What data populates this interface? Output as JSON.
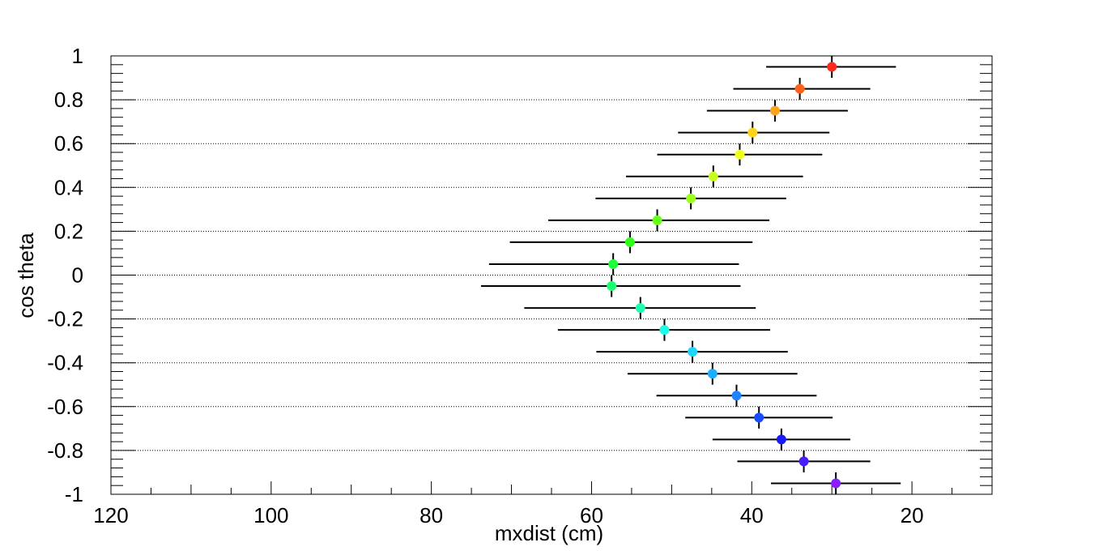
{
  "chart_data": {
    "type": "scatter",
    "title": "",
    "xlabel": "mxdist (cm)",
    "ylabel": "cos theta",
    "xlim": [
      120,
      10
    ],
    "ylim": [
      -1,
      1
    ],
    "x_reversed": true,
    "x_ticks": [
      120,
      100,
      80,
      60,
      40,
      20
    ],
    "x_tick_labels": [
      "120",
      "100",
      "80",
      "60",
      "40",
      "20"
    ],
    "y_ticks": [
      -1,
      -0.8,
      -0.6,
      -0.4,
      -0.2,
      0,
      0.2,
      0.4,
      0.6,
      0.8,
      1
    ],
    "y_tick_labels": [
      "-1",
      "-0.8",
      "-0.6",
      "-0.4",
      "-0.2",
      "0",
      "0.2",
      "0.4",
      "0.6",
      "0.8",
      "1"
    ],
    "grid_y": true,
    "points": [
      {
        "x": 29.5,
        "y": -0.95,
        "x_lo": 37.6,
        "x_hi": 21.4,
        "y_err": 0.05,
        "color": "#8a1cff"
      },
      {
        "x": 33.5,
        "y": -0.85,
        "x_lo": 41.8,
        "x_hi": 25.2,
        "y_err": 0.05,
        "color": "#4a1cff"
      },
      {
        "x": 36.3,
        "y": -0.75,
        "x_lo": 44.9,
        "x_hi": 27.7,
        "y_err": 0.05,
        "color": "#1a1aff"
      },
      {
        "x": 39.1,
        "y": -0.65,
        "x_lo": 48.3,
        "x_hi": 29.9,
        "y_err": 0.05,
        "color": "#1a4cff"
      },
      {
        "x": 41.9,
        "y": -0.55,
        "x_lo": 51.9,
        "x_hi": 31.9,
        "y_err": 0.05,
        "color": "#1c84ff"
      },
      {
        "x": 44.9,
        "y": -0.45,
        "x_lo": 55.5,
        "x_hi": 34.3,
        "y_err": 0.05,
        "color": "#1caeff"
      },
      {
        "x": 47.4,
        "y": -0.35,
        "x_lo": 59.4,
        "x_hi": 35.5,
        "y_err": 0.05,
        "color": "#1cd6ff"
      },
      {
        "x": 50.9,
        "y": -0.25,
        "x_lo": 64.2,
        "x_hi": 37.7,
        "y_err": 0.05,
        "color": "#1cfce8"
      },
      {
        "x": 53.9,
        "y": -0.15,
        "x_lo": 68.4,
        "x_hi": 39.5,
        "y_err": 0.05,
        "color": "#1cffae"
      },
      {
        "x": 57.5,
        "y": -0.05,
        "x_lo": 73.8,
        "x_hi": 41.4,
        "y_err": 0.05,
        "color": "#1cff6e"
      },
      {
        "x": 57.3,
        "y": 0.05,
        "x_lo": 72.8,
        "x_hi": 41.6,
        "y_err": 0.05,
        "color": "#1cff3a"
      },
      {
        "x": 55.2,
        "y": 0.15,
        "x_lo": 70.2,
        "x_hi": 39.9,
        "y_err": 0.05,
        "color": "#33ff1c"
      },
      {
        "x": 51.8,
        "y": 0.25,
        "x_lo": 65.4,
        "x_hi": 37.8,
        "y_err": 0.05,
        "color": "#66ff1c"
      },
      {
        "x": 47.6,
        "y": 0.35,
        "x_lo": 59.5,
        "x_hi": 35.7,
        "y_err": 0.05,
        "color": "#9aff1c"
      },
      {
        "x": 44.8,
        "y": 0.45,
        "x_lo": 55.7,
        "x_hi": 33.6,
        "y_err": 0.05,
        "color": "#c6ff1c"
      },
      {
        "x": 41.5,
        "y": 0.55,
        "x_lo": 51.8,
        "x_hi": 31.2,
        "y_err": 0.05,
        "color": "#f0ff1c"
      },
      {
        "x": 39.9,
        "y": 0.65,
        "x_lo": 49.2,
        "x_hi": 30.3,
        "y_err": 0.05,
        "color": "#ffd21c"
      },
      {
        "x": 37.1,
        "y": 0.75,
        "x_lo": 45.6,
        "x_hi": 28.0,
        "y_err": 0.05,
        "color": "#ffa21c"
      },
      {
        "x": 34.0,
        "y": 0.85,
        "x_lo": 42.3,
        "x_hi": 25.2,
        "y_err": 0.05,
        "color": "#ff621c"
      },
      {
        "x": 30.0,
        "y": 0.95,
        "x_lo": 38.2,
        "x_hi": 22.0,
        "y_err": 0.05,
        "color": "#ff2a1c"
      }
    ]
  }
}
